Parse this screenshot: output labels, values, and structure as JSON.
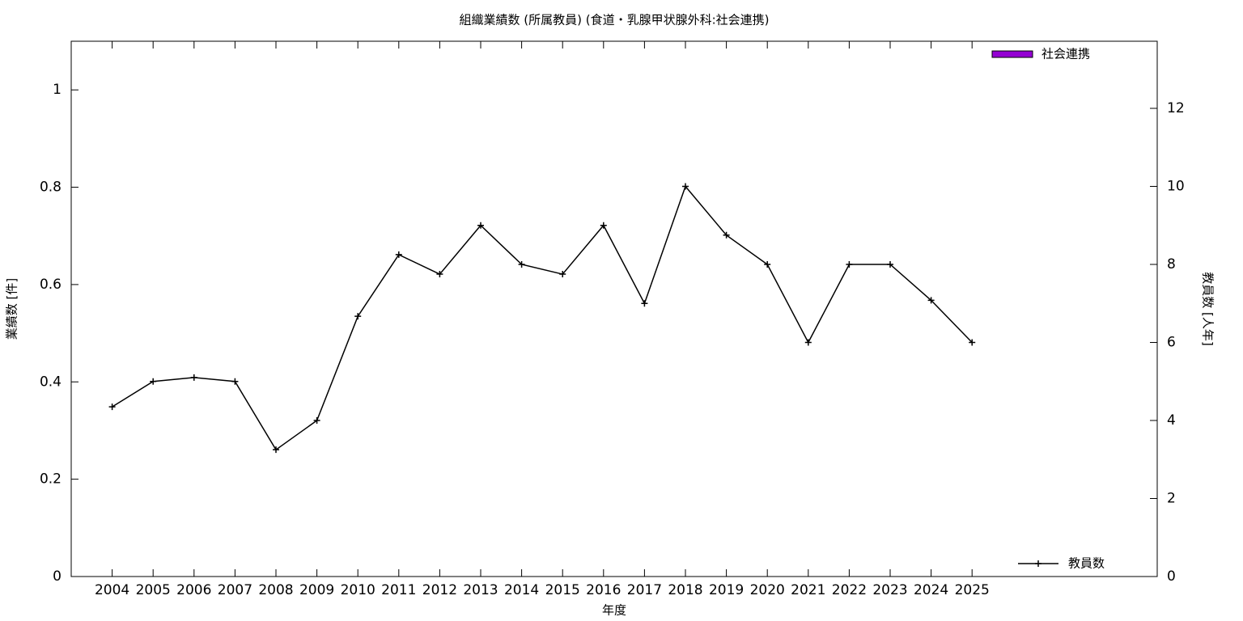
{
  "chart_data": {
    "type": "combo",
    "title": "組織業績数 (所属教員) (食道・乳腺甲状腺外科:社会連携)",
    "x_label": "年度",
    "y_label": "業績数 [件]",
    "y2_label": "教員数 [人年]",
    "categories": [
      "2004",
      "2005",
      "2006",
      "2007",
      "2008",
      "2009",
      "2010",
      "2011",
      "2012",
      "2013",
      "2014",
      "2015",
      "2016",
      "2017",
      "2018",
      "2019",
      "2020",
      "2021",
      "2022",
      "2023",
      "2024",
      "2025"
    ],
    "ylim": [
      0,
      1.1
    ],
    "yticks": [
      0,
      0.2,
      0.4,
      0.6,
      0.8,
      1
    ],
    "y2lim": [
      0,
      13.72
    ],
    "y2ticks": [
      0,
      2,
      4,
      6,
      8,
      10,
      12
    ],
    "series": [
      {
        "name": "社会連携",
        "type": "bar",
        "color": "#9400d3",
        "values": [
          0,
          0,
          0,
          0,
          0,
          0,
          0,
          0,
          0,
          0,
          0,
          0,
          0,
          0,
          0,
          0,
          0,
          0,
          0,
          0,
          0,
          0
        ]
      },
      {
        "name": "教員数",
        "type": "line",
        "axis": "y2",
        "color": "#000000",
        "values": [
          4.35,
          5,
          5.1,
          5,
          3.25,
          4,
          6.67,
          8.25,
          7.75,
          9,
          8,
          7.75,
          9,
          7,
          10,
          8.75,
          8,
          6,
          8,
          8,
          7.08,
          6
        ]
      }
    ]
  }
}
